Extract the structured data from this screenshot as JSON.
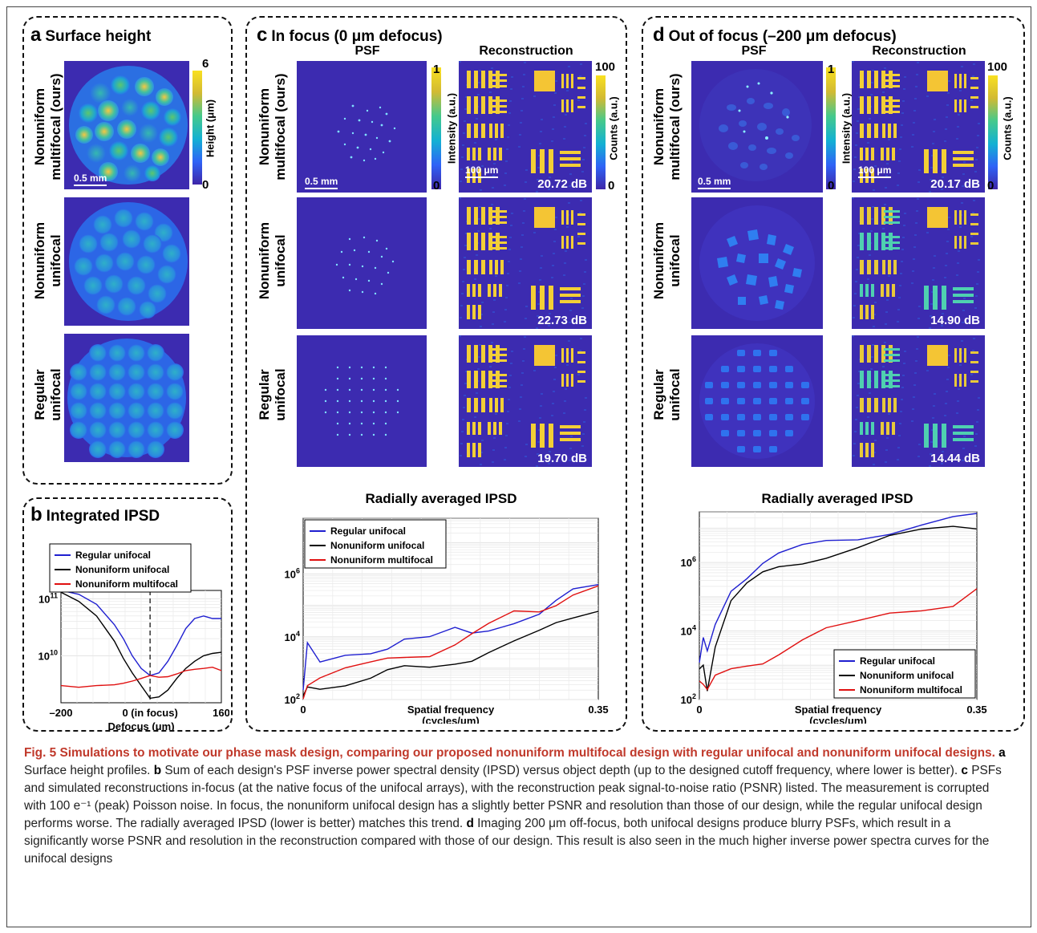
{
  "panels": {
    "a": {
      "letter": "a",
      "title": "Surface height",
      "colorbar_label": "Height (μm)",
      "cb_max": "6",
      "cb_min": "0",
      "scalebar": "0.5 mm"
    },
    "b": {
      "letter": "b",
      "title": "Integrated IPSD"
    },
    "c": {
      "letter": "c",
      "title": "In focus (0 μm defocus)",
      "psf_label": "PSF",
      "recon_label": "Reconstruction",
      "psf_cb_label": "Intensity (a.u.)",
      "psf_cb_max": "1",
      "psf_cb_min": "0",
      "recon_cb_label": "Counts (a.u.)",
      "recon_cb_max": "100",
      "recon_cb_min": "0",
      "psf_scalebar": "0.5 mm",
      "recon_scalebar": "100 μm",
      "psnr": [
        "20.72 dB",
        "22.73 dB",
        "19.70 dB"
      ],
      "plot_title": "Radially averaged IPSD"
    },
    "d": {
      "letter": "d",
      "title": "Out of focus (–200 μm defocus)",
      "psf_label": "PSF",
      "recon_label": "Reconstruction",
      "psf_cb_label": "Intensity (a.u.)",
      "psf_cb_max": "1",
      "psf_cb_min": "0",
      "recon_cb_label": "Counts (a.u.)",
      "recon_cb_max": "100",
      "recon_cb_min": "0",
      "psf_scalebar": "0.5 mm",
      "recon_scalebar": "100 μm",
      "psnr": [
        "20.17 dB",
        "14.90 dB",
        "14.44 dB"
      ],
      "plot_title": "Radially averaged IPSD"
    }
  },
  "row_labels": {
    "r1": [
      "Nonuniform",
      "multifocal (ours)"
    ],
    "r2": [
      "Nonuniform",
      "unifocal"
    ],
    "r3": [
      "Regular",
      "unifocal"
    ]
  },
  "colors": {
    "regular": "#1f1fd0",
    "nonuniform_unifocal": "#000000",
    "multifocal": "#e01010",
    "parula_bg": "#3c2bb0"
  },
  "chart_data": [
    {
      "type": "line",
      "panel": "b",
      "title": "Integrated IPSD",
      "xlabel": "Defocus (μm)",
      "ylabel": "",
      "x_ticks": [
        "–200",
        "0 (in focus)",
        "160"
      ],
      "y_ticks": [
        "10^10",
        "10^11"
      ],
      "yscale": "log",
      "xlim": [
        -200,
        160
      ],
      "ylim": [
        1500000000.0,
        140000000000.0
      ],
      "vline_x": 0,
      "legend": [
        "Regular unifocal",
        "Nonuniform unifocal",
        "Nonuniform multifocal"
      ],
      "legend_position": "top",
      "x": [
        -200,
        -160,
        -120,
        -80,
        -60,
        -40,
        -20,
        0,
        20,
        40,
        60,
        80,
        100,
        120,
        140,
        160
      ],
      "series": [
        {
          "name": "Regular unifocal",
          "values": [
            140000000000.0,
            120000000000.0,
            80000000000.0,
            35000000000.0,
            20000000000.0,
            10000000000.0,
            6000000000.0,
            4500000000.0,
            5000000000.0,
            8000000000.0,
            15000000000.0,
            30000000000.0,
            45000000000.0,
            50000000000.0,
            45000000000.0,
            45000000000.0
          ]
        },
        {
          "name": "Nonuniform unifocal",
          "values": [
            130000000000.0,
            90000000000.0,
            50000000000.0,
            18000000000.0,
            9000000000.0,
            5000000000.0,
            3000000000.0,
            1800000000.0,
            1900000000.0,
            2500000000.0,
            4000000000.0,
            6000000000.0,
            8000000000.0,
            10000000000.0,
            11000000000.0,
            11500000000.0
          ]
        },
        {
          "name": "Nonuniform multifocal",
          "values": [
            3000000000.0,
            2800000000.0,
            3000000000.0,
            3100000000.0,
            3300000000.0,
            3600000000.0,
            4000000000.0,
            4500000000.0,
            4200000000.0,
            4300000000.0,
            4800000000.0,
            5500000000.0,
            5800000000.0,
            6000000000.0,
            6300000000.0,
            5500000000.0
          ]
        }
      ]
    },
    {
      "type": "line",
      "panel": "c",
      "title": "Radially averaged IPSD",
      "xlabel": "Spatial frequency (cycles/μm)",
      "ylabel": "",
      "x_ticks": [
        "0",
        "0.35"
      ],
      "y_ticks": [
        "10^2",
        "10^4",
        "10^6"
      ],
      "yscale": "log",
      "xlim": [
        0,
        0.35
      ],
      "ylim": [
        100,
        60000000.0
      ],
      "legend": [
        "Regular unifocal",
        "Nonuniform unifocal",
        "Nonuniform multifocal"
      ],
      "legend_position": "top-left",
      "x": [
        0,
        0.005,
        0.02,
        0.05,
        0.08,
        0.1,
        0.12,
        0.15,
        0.18,
        0.2,
        0.22,
        0.25,
        0.28,
        0.3,
        0.32,
        0.35
      ],
      "series": [
        {
          "name": "Regular unifocal",
          "values": [
            200,
            5000,
            1200,
            2500,
            4000,
            6000,
            9000,
            8000,
            15000,
            12000,
            20000,
            40000,
            60000,
            120000,
            250000,
            400000
          ]
        },
        {
          "name": "Nonuniform unifocal",
          "values": [
            100,
            250,
            300,
            400,
            500,
            700,
            900,
            1000,
            1800,
            2500,
            3500,
            6000,
            12000,
            25000,
            50000,
            100000
          ]
        },
        {
          "name": "Nonuniform multifocal",
          "values": [
            150,
            400,
            500,
            800,
            1200,
            2000,
            3000,
            3500,
            6000,
            10000,
            20000,
            60000,
            80000,
            150000,
            250000,
            350000
          ]
        }
      ]
    },
    {
      "type": "line",
      "panel": "d",
      "title": "Radially averaged IPSD",
      "xlabel": "Spatial frequency (cycles/μm)",
      "ylabel": "",
      "x_ticks": [
        "0",
        "0.35"
      ],
      "y_ticks": [
        "10^2",
        "10^4",
        "10^6"
      ],
      "yscale": "log",
      "xlim": [
        0,
        0.35
      ],
      "ylim": [
        100,
        30000000.0
      ],
      "legend": [
        "Regular unifocal",
        "Nonuniform unifocal",
        "Nonuniform multifocal"
      ],
      "legend_position": "bottom-right",
      "x": [
        0,
        0.005,
        0.01,
        0.02,
        0.04,
        0.06,
        0.08,
        0.1,
        0.13,
        0.16,
        0.2,
        0.24,
        0.28,
        0.32,
        0.35
      ],
      "series": [
        {
          "name": "Regular unifocal",
          "values": [
            1200,
            5000,
            2000,
            15000,
            200000,
            500000,
            1000000,
            1500000,
            2500000,
            4000000,
            6000000,
            10000000,
            14000000,
            18000000,
            20000000
          ]
        },
        {
          "name": "Nonuniform unifocal",
          "values": [
            600,
            1000,
            250,
            5000,
            80000,
            200000,
            400000,
            700000,
            1200000,
            2000000,
            3000000,
            5000000,
            7000000,
            10000000,
            12000000
          ]
        },
        {
          "name": "Nonuniform multifocal",
          "values": [
            500,
            400,
            200,
            400,
            600,
            900,
            1500,
            3000,
            6000,
            10000,
            15000,
            30000,
            50000,
            80000,
            200000
          ]
        }
      ]
    }
  ],
  "caption": {
    "fig_label": "Fig. 5",
    "bold_text": "Simulations to motivate our phase mask design, comparing our proposed nonuniform multifocal design with regular unifocal and nonuniform unifocal designs.",
    "a": "a",
    "a_text": "Surface height profiles.",
    "b": "b",
    "b_text": "Sum of each design's PSF inverse power spectral density (IPSD) versus object depth (up to the designed cutoff frequency, where lower is better).",
    "c": "c",
    "c_text": "PSFs and simulated reconstructions in-focus (at the native focus of the unifocal arrays), with the reconstruction peak signal-to-noise ratio (PSNR) listed. The measurement is corrupted with 100 e⁻¹ (peak) Poisson noise. In focus, the nonuniform unifocal design has a slightly better PSNR and resolution than those of our design, while the regular unifocal design performs worse. The radially averaged IPSD (lower is better) matches this trend.",
    "d": "d",
    "d_text": "Imaging 200 μm off-focus, both unifocal designs produce blurry PSFs, which result in a significantly worse PSNR and resolution in the reconstruction compared with those of our design. This result is also seen in the much higher inverse power spectra curves for the unifocal designs"
  }
}
